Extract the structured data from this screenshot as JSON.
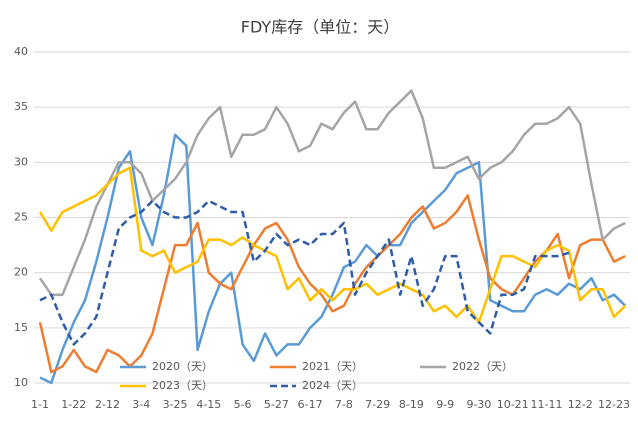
{
  "chart_data": {
    "type": "line",
    "title": "FDY库存（单位：天）",
    "categories": [
      "1-1",
      null,
      null,
      "1-22",
      null,
      null,
      "2-12",
      null,
      null,
      "3-4",
      null,
      null,
      "3-25",
      null,
      null,
      "4-15",
      null,
      null,
      "5-6",
      null,
      null,
      "5-27",
      null,
      null,
      "6-17",
      null,
      null,
      "7-8",
      null,
      null,
      "7-29",
      null,
      null,
      "8-19",
      null,
      null,
      "9-9",
      null,
      null,
      "9-30",
      null,
      null,
      "10-21",
      null,
      null,
      "11-11",
      null,
      null,
      "12-2",
      null,
      null,
      "12-23",
      null
    ],
    "ylim": [
      10,
      40
    ],
    "yticks": [
      10,
      15,
      20,
      25,
      30,
      35,
      40
    ],
    "grid": true,
    "legend": "bottom",
    "series": [
      {
        "name": "2020（天）",
        "color": "#5b9bd5",
        "dash": false,
        "values": [
          10.5,
          10,
          13,
          15.5,
          17.5,
          21,
          25,
          29.5,
          31,
          25,
          22.5,
          27,
          32.5,
          31.5,
          13,
          16.5,
          19,
          20,
          13.5,
          12,
          14.5,
          12.5,
          13.5,
          13.5,
          15,
          16,
          18,
          20.5,
          21,
          22.5,
          21.5,
          22.5,
          22.5,
          24.5,
          25.5,
          26.5,
          27.5,
          29,
          29.5,
          30,
          17.5,
          17,
          16.5,
          16.5,
          18,
          18.5,
          18,
          19,
          18.5,
          19.5,
          17.5,
          18,
          17
        ]
      },
      {
        "name": "2021（天）",
        "color": "#ed7d31",
        "dash": false,
        "values": [
          15.5,
          11,
          11.5,
          13,
          11.5,
          11,
          13,
          12.5,
          11.5,
          12.5,
          14.5,
          18.5,
          22.5,
          22.5,
          24.5,
          20,
          19,
          18.5,
          20.5,
          22.5,
          24,
          24.5,
          23,
          20.5,
          19,
          18,
          16.5,
          17,
          19,
          20.5,
          21.5,
          22.5,
          23.5,
          25,
          26,
          24,
          24.5,
          25.5,
          27,
          23,
          19.5,
          18.5,
          18,
          19.5,
          21,
          22,
          23.5,
          19.5,
          22.5,
          23,
          23,
          21,
          21.5
        ]
      },
      {
        "name": "2022（天）",
        "color": "#a5a5a5",
        "dash": false,
        "values": [
          19.5,
          18,
          18,
          20.5,
          23,
          26,
          28,
          30,
          30,
          29,
          26.5,
          27.5,
          28.5,
          30,
          32.5,
          34,
          35,
          30.5,
          32.5,
          32.5,
          33,
          35,
          33.5,
          31,
          31.5,
          33.5,
          33,
          34.5,
          35.5,
          33,
          33,
          34.5,
          35.5,
          36.5,
          34,
          29.5,
          29.5,
          30,
          30.5,
          28.5,
          29.5,
          30,
          31,
          32.5,
          33.5,
          33.5,
          34,
          35,
          33.5,
          28,
          23,
          24,
          24.5
        ]
      },
      {
        "name": "2023（天）",
        "color": "#ffc000",
        "dash": false,
        "values": [
          25.5,
          23.8,
          25.5,
          26,
          26.5,
          27,
          28,
          29,
          29.5,
          22,
          21.5,
          22,
          20,
          20.5,
          21,
          23,
          23,
          22.5,
          23.2,
          22.5,
          22,
          21.5,
          18.5,
          19.5,
          17.5,
          18.5,
          17.5,
          18.5,
          18.5,
          19,
          18,
          18.5,
          19,
          18.5,
          18,
          16.5,
          17,
          16,
          17,
          15.5,
          18.5,
          21.5,
          21.5,
          21,
          20.5,
          22,
          22.5,
          22,
          17.5,
          18.5,
          18.5,
          16,
          17
        ]
      },
      {
        "name": "2024（天）",
        "color": "#2e5ca8",
        "dash": true,
        "values": [
          17.5,
          18,
          15.5,
          13.5,
          14.5,
          16,
          20,
          24,
          25,
          25.5,
          26.5,
          25.5,
          25,
          25,
          25.5,
          26.5,
          26,
          25.5,
          25.5,
          21,
          22,
          23.5,
          22.5,
          23,
          22.5,
          23.5,
          23.5,
          24.5,
          18,
          20,
          21.5,
          23,
          18,
          21.5,
          17,
          18.5,
          21.5,
          21.5,
          16.5,
          15.5,
          14.5,
          18,
          18,
          18.5,
          21.5,
          21.5,
          21.5,
          21.8,
          null,
          null,
          null,
          null,
          null
        ]
      }
    ]
  }
}
